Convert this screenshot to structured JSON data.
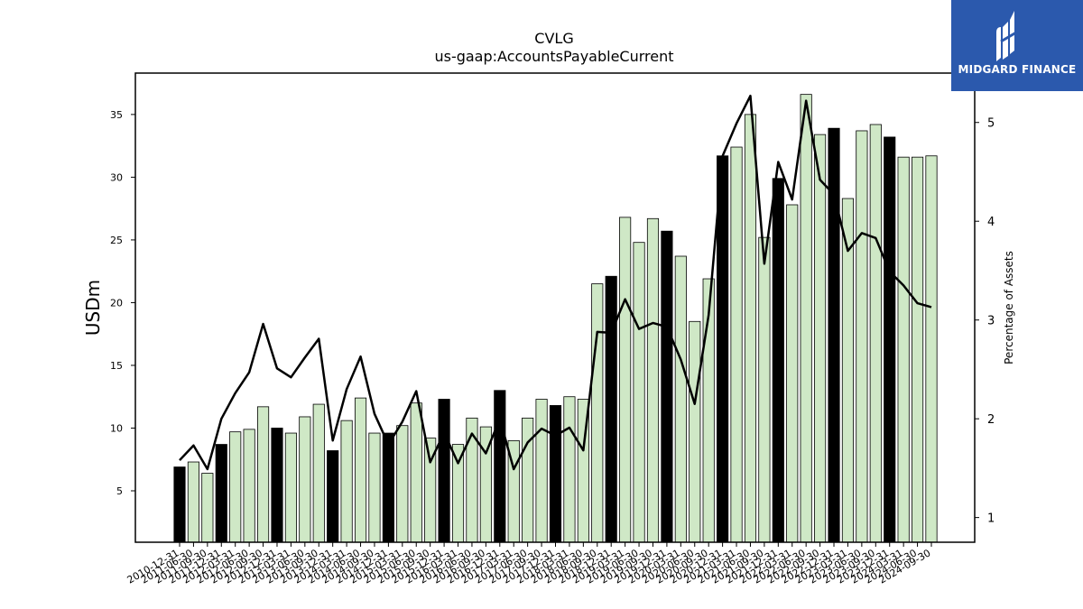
{
  "logo": {
    "text": "MIDGARD FINANCE",
    "background": "#2b59ad",
    "icon": "midgard-logo-icon"
  },
  "chart_data": {
    "type": "bar",
    "title": "CVLG",
    "subtitle": "us-gaap:AccountsPayableCurrent",
    "ylabel": "USDm",
    "ylabel_right": "Percentage of Assets",
    "ylim": [
      0.9,
      38.3
    ],
    "ylim_right": [
      0.75,
      5.5
    ],
    "yticks": [
      5,
      10,
      15,
      20,
      25,
      30,
      35
    ],
    "yticks_right": [
      1,
      2,
      3,
      4,
      5
    ],
    "grid": false,
    "legend": "none",
    "colors": {
      "bar_quarter": "#cfe8c6",
      "bar_year_end": "#000000",
      "line": "#000000"
    },
    "categories": [
      "2010-12-31",
      "2011-06-30",
      "2011-09-30",
      "2011-12-31",
      "2012-03-31",
      "2012-06-30",
      "2012-09-30",
      "2012-12-31",
      "2013-03-31",
      "2013-06-30",
      "2013-09-30",
      "2013-12-31",
      "2014-03-31",
      "2014-06-30",
      "2014-09-30",
      "2014-12-31",
      "2015-03-31",
      "2015-06-30",
      "2015-09-30",
      "2015-12-31",
      "2016-03-31",
      "2016-06-30",
      "2016-09-30",
      "2016-12-31",
      "2017-03-31",
      "2017-06-30",
      "2017-09-30",
      "2017-12-31",
      "2018-03-31",
      "2018-06-30",
      "2018-09-30",
      "2018-12-31",
      "2019-03-31",
      "2019-06-30",
      "2019-09-30",
      "2019-12-31",
      "2020-03-31",
      "2020-06-30",
      "2020-09-30",
      "2020-12-31",
      "2021-03-31",
      "2021-06-30",
      "2021-09-30",
      "2021-12-31",
      "2022-03-31",
      "2022-06-30",
      "2022-09-30",
      "2022-12-31",
      "2023-03-31",
      "2023-06-30",
      "2023-09-30",
      "2023-12-31",
      "2024-03-31",
      "2024-06-30",
      "2024-09-30"
    ],
    "series": [
      {
        "type": "bar",
        "values": [
          6.9,
          7.3,
          6.4,
          8.7,
          9.7,
          9.9,
          11.7,
          10.0,
          9.6,
          10.9,
          11.9,
          8.2,
          10.6,
          12.4,
          9.6,
          9.6,
          10.2,
          12.0,
          9.2,
          12.3,
          8.7,
          10.8,
          10.1,
          13.0,
          9.0,
          10.8,
          12.3,
          11.8,
          12.5,
          12.3,
          21.5,
          22.1,
          26.8,
          24.8,
          26.7,
          25.7,
          23.7,
          18.5,
          21.9,
          31.7,
          32.4,
          35.0,
          25.2,
          29.9,
          27.8,
          36.6,
          33.4,
          33.9,
          28.3,
          33.7,
          34.2,
          33.2,
          31.6,
          31.6,
          31.7
        ],
        "year_end": [
          true,
          false,
          false,
          true,
          false,
          false,
          false,
          true,
          false,
          false,
          false,
          true,
          false,
          false,
          false,
          true,
          false,
          false,
          false,
          true,
          false,
          false,
          false,
          true,
          false,
          false,
          false,
          true,
          false,
          false,
          false,
          true,
          false,
          false,
          false,
          true,
          false,
          false,
          false,
          true,
          false,
          false,
          false,
          true,
          false,
          false,
          false,
          true,
          false,
          false,
          false,
          true,
          false,
          false,
          false
        ]
      },
      {
        "type": "line",
        "axis": "right",
        "values": [
          1.58,
          1.73,
          1.49,
          2.0,
          2.26,
          2.47,
          2.96,
          2.51,
          2.42,
          2.62,
          2.81,
          1.78,
          2.3,
          2.63,
          2.05,
          1.74,
          1.97,
          2.28,
          1.56,
          1.86,
          1.55,
          1.85,
          1.65,
          2.0,
          1.49,
          1.76,
          1.9,
          1.83,
          1.91,
          1.68,
          2.88,
          2.87,
          3.21,
          2.91,
          2.97,
          2.93,
          2.6,
          2.15,
          3.05,
          4.66,
          4.99,
          5.27,
          3.57,
          4.6,
          4.22,
          5.22,
          4.42,
          4.27,
          3.7,
          3.88,
          3.83,
          3.49,
          3.35,
          3.17,
          3.13
        ]
      }
    ]
  }
}
